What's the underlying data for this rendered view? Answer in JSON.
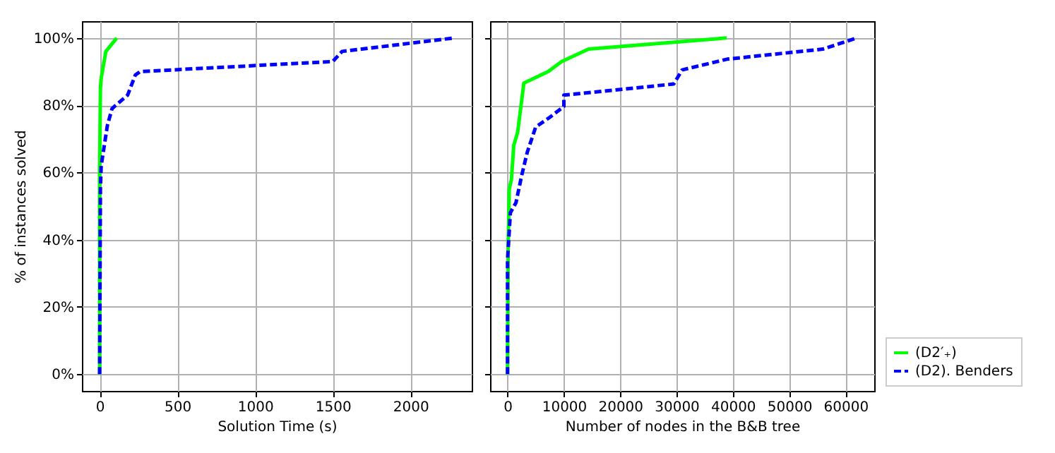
{
  "chart_data": [
    {
      "type": "line",
      "xlabel": "Solution Time (s)",
      "ylabel": "% of instances solved",
      "xlim": [
        -114,
        2394
      ],
      "xticks": [
        0,
        500,
        1000,
        1500,
        2000
      ],
      "ylim": [
        -5,
        105
      ],
      "yticks": [
        {
          "value": 0,
          "label": "0%"
        },
        {
          "value": 20,
          "label": "20%"
        },
        {
          "value": 40,
          "label": "40%"
        },
        {
          "value": 60,
          "label": "60%"
        },
        {
          "value": 80,
          "label": "80%"
        },
        {
          "value": 100,
          "label": "100%"
        }
      ],
      "grid": true,
      "legend": "bottom right",
      "series": [
        {
          "name": "(D2′₊)",
          "color": "#00ff00",
          "line_style": "solid",
          "x": [
            0,
            0,
            5,
            10,
            40,
            110
          ],
          "values": [
            0,
            60,
            85,
            88,
            96,
            100
          ]
        },
        {
          "name": "(D2). Benders",
          "color": "#0000ff",
          "line_style": "dashed",
          "x": [
            0,
            5,
            10,
            30,
            50,
            80,
            180,
            230,
            260,
            1500,
            1560,
            2280
          ],
          "values": [
            0,
            55,
            62,
            68,
            74,
            79,
            83,
            89,
            90,
            93,
            96,
            100
          ]
        }
      ]
    },
    {
      "type": "line",
      "xlabel": "Number of nodes in the B&B tree",
      "xlim": [
        -3100,
        65100
      ],
      "xticks": [
        0,
        10000,
        20000,
        30000,
        40000,
        50000,
        60000
      ],
      "ylim": [
        -5,
        105
      ],
      "yticks": [
        0,
        20,
        40,
        60,
        80,
        100
      ],
      "grid": true,
      "tick_labels": "x",
      "series": [
        {
          "color": "#00ff00",
          "line_style": "solid",
          "x": [
            0,
            100,
            300,
            700,
            1100,
            1800,
            2900,
            7200,
            9600,
            14400,
            38900
          ],
          "values": [
            0,
            37,
            55,
            58,
            68,
            72,
            86.6,
            90,
            93,
            96.7,
            100
          ]
        },
        {
          "color": "#0000ff",
          "line_style": "dashed",
          "x": [
            0,
            0,
            500,
            1500,
            2500,
            3500,
            5000,
            7500,
            10000,
            10000,
            29500,
            31000,
            39000,
            56000,
            62000
          ],
          "values": [
            0,
            34,
            48,
            51,
            59,
            66,
            73.5,
            76.4,
            79.6,
            83,
            86.3,
            90.5,
            93.7,
            96.7,
            100
          ]
        }
      ]
    }
  ]
}
